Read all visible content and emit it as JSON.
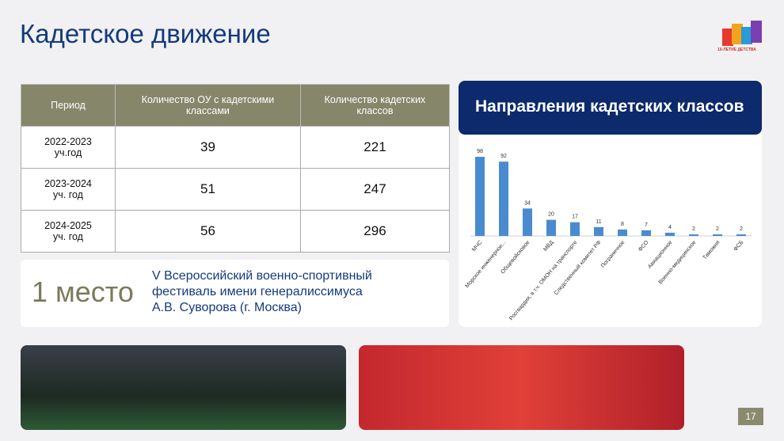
{
  "header": {
    "title": "Кадетское движение",
    "logo": "10-ЛЕТИЕ ДЕТСТВА"
  },
  "table": {
    "headers": [
      "Период",
      "Количество ОУ с кадетскими классами",
      "Количество кадетских классов"
    ],
    "rows": [
      {
        "period": [
          "2022-2023",
          "уч.год"
        ],
        "schools": 39,
        "classes": 221
      },
      {
        "period": [
          "2023-2024",
          "уч. год"
        ],
        "schools": 51,
        "classes": 247
      },
      {
        "period": [
          "2024-2025",
          "уч. год"
        ],
        "schools": 56,
        "classes": 296
      }
    ]
  },
  "award": {
    "place": "1 место",
    "lines": [
      "V Всероссийский  военно-спортивный",
      "фестиваль имени генералиссимуса",
      "А.В. Суворова (г. Москва)"
    ]
  },
  "chart_data": {
    "type": "bar",
    "title": "Направления кадетских классов",
    "color": "#4a8bd0",
    "categories": [
      "МЧС",
      "Морское инженерное...",
      "Общевойсковое",
      "МВД",
      "Росгвардия, в т.ч. ОМОН на транспорте",
      "Следственный комитет РФ",
      "Пограничное",
      "ФСО",
      "Авиационное",
      "Военно-медицинское",
      "Таможня",
      "ФСБ"
    ],
    "values": [
      98,
      92,
      34,
      20,
      17,
      11,
      8,
      7,
      4,
      2,
      2,
      2
    ]
  },
  "page_number": "17"
}
